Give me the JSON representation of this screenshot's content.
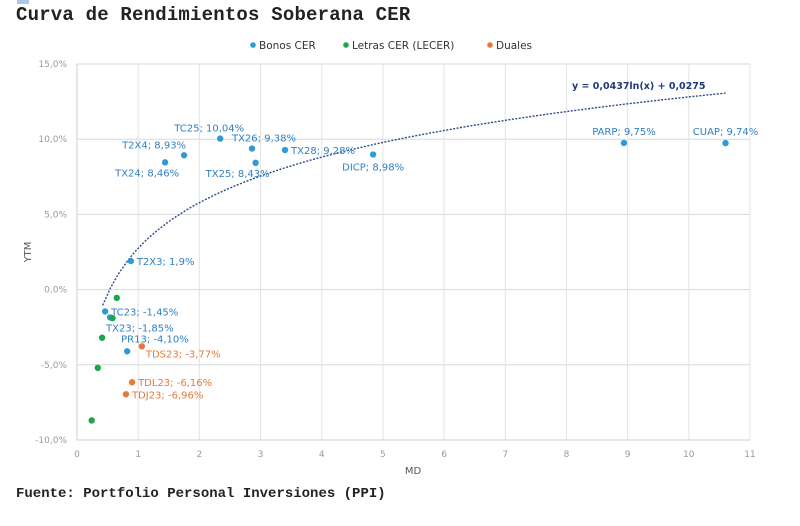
{
  "title": "Curva de Rendimientos Soberana CER",
  "source": "Fuente: Portfolio Personal Inversiones (PPI)",
  "chart_data": {
    "type": "scatter",
    "title": "Curva de Rendimientos Soberana CER",
    "xlabel": "MD",
    "ylabel": "YTM",
    "xlim": [
      0,
      11
    ],
    "ylim": [
      -10,
      15
    ],
    "xticks": [
      "0",
      "1",
      "2",
      "3",
      "4",
      "5",
      "6",
      "7",
      "8",
      "9",
      "10",
      "11"
    ],
    "yticks": [
      {
        "value": 15,
        "label": "15,0%"
      },
      {
        "value": 10,
        "label": "10,0%"
      },
      {
        "value": 5,
        "label": "5,0%"
      },
      {
        "value": 0,
        "label": "0,0%"
      },
      {
        "value": -5,
        "label": "-5,0%"
      },
      {
        "value": -10,
        "label": "-10,0%"
      }
    ],
    "grid": true,
    "legend_position": "top-center",
    "series": [
      {
        "name": "Bonos CER",
        "color": "#2e9bd6",
        "label_color": "#2f7fc1",
        "points": [
          {
            "x": 1.44,
            "y": 8.46,
            "label": "TX24; 8,46%",
            "lpos": "below-left"
          },
          {
            "x": 1.75,
            "y": 8.93,
            "label": "T2X4; 8,93%",
            "lpos": "above-left"
          },
          {
            "x": 2.34,
            "y": 10.04,
            "label": "TC25; 10,04%",
            "lpos": "above-left"
          },
          {
            "x": 2.86,
            "y": 9.38,
            "label": "TX26; 9,38%",
            "lpos": "above-right"
          },
          {
            "x": 2.92,
            "y": 8.43,
            "label": "TX25; 8,43%",
            "lpos": "below-left"
          },
          {
            "x": 3.4,
            "y": 9.28,
            "label": "TX28; 9,28%",
            "lpos": "right"
          },
          {
            "x": 4.84,
            "y": 8.98,
            "label": "DICP; 8,98%",
            "lpos": "below"
          },
          {
            "x": 8.94,
            "y": 9.75,
            "label": "PARP; 9,75%",
            "lpos": "above"
          },
          {
            "x": 10.6,
            "y": 9.74,
            "label": "CUAP; 9,74%",
            "lpos": "above"
          },
          {
            "x": 0.88,
            "y": 1.9,
            "label": "T2X3; 1,9%",
            "lpos": "right"
          },
          {
            "x": 0.46,
            "y": -1.45,
            "label": "TC23; -1,45%",
            "lpos": "right"
          },
          {
            "x": 0.54,
            "y": -1.85,
            "label": "TX23; -1,85%",
            "lpos": "below-right"
          },
          {
            "x": 0.82,
            "y": -4.1,
            "label": "PR13; -4,10%",
            "lpos": "above-right"
          }
        ]
      },
      {
        "name": "Letras CER (LECER)",
        "color": "#1aa64a",
        "points": [
          {
            "x": 0.65,
            "y": -0.55
          },
          {
            "x": 0.58,
            "y": -1.9
          },
          {
            "x": 0.41,
            "y": -3.2
          },
          {
            "x": 0.34,
            "y": -5.2
          },
          {
            "x": 0.24,
            "y": -8.7
          }
        ]
      },
      {
        "name": "Duales",
        "color": "#e8793a",
        "label_color": "#e8793a",
        "points": [
          {
            "x": 1.06,
            "y": -3.77,
            "label": "TDS23; -3,77%",
            "lpos": "below-right"
          },
          {
            "x": 0.9,
            "y": -6.16,
            "label": "TDL23; -6,16%",
            "lpos": "right"
          },
          {
            "x": 0.8,
            "y": -6.96,
            "label": "TDJ23; -6,96%",
            "lpos": "right"
          }
        ]
      }
    ],
    "trendline": {
      "type": "logarithmic",
      "equation": "y = 0,0437ln(x) + 0,0275",
      "a": 0.0437,
      "b": 0.0275,
      "x_range": [
        0.42,
        10.6
      ],
      "color": "#2d4a8a"
    }
  }
}
